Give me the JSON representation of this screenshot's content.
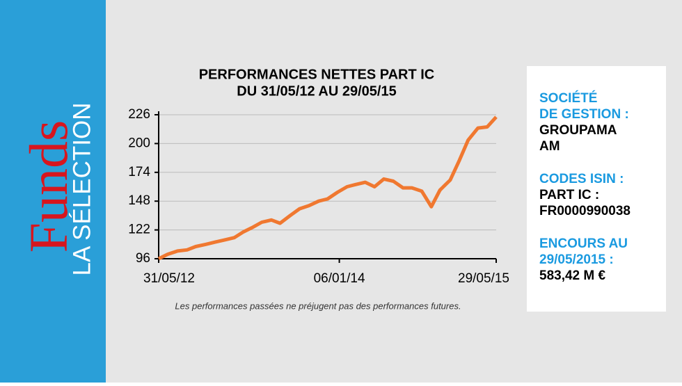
{
  "sidebar": {
    "brand": "Funds",
    "tagline": "LA SÉLECTION"
  },
  "chart_data": {
    "type": "line",
    "title": [
      "PERFORMANCES NETTES PART IC",
      "DU 31/05/12 AU 29/05/15"
    ],
    "note": "Les performances passées ne préjugent pas des performances futures.",
    "x": [
      "31/05/12",
      "29/06/12",
      "31/07/12",
      "31/08/12",
      "28/09/12",
      "31/10/12",
      "30/11/12",
      "31/12/12",
      "31/01/13",
      "28/02/13",
      "29/03/13",
      "30/04/13",
      "31/05/13",
      "28/06/13",
      "31/07/13",
      "30/08/13",
      "30/09/13",
      "31/10/13",
      "29/11/13",
      "31/12/13",
      "31/01/14",
      "28/02/14",
      "31/03/14",
      "30/04/14",
      "30/05/14",
      "30/06/14",
      "31/07/14",
      "29/08/14",
      "30/09/14",
      "31/10/14",
      "28/11/14",
      "31/12/14",
      "30/01/15",
      "27/02/15",
      "31/03/15",
      "30/04/15",
      "29/05/15"
    ],
    "series": [
      {
        "color": "#f07830",
        "values": [
          96,
          100,
          103,
          104,
          107,
          109,
          111,
          113,
          115,
          120,
          124,
          129,
          131,
          128,
          135,
          141,
          144,
          148,
          150,
          156,
          161,
          163,
          165,
          161,
          168,
          166,
          160,
          160,
          157,
          143,
          158,
          167,
          185,
          203,
          214,
          215,
          224
        ]
      }
    ],
    "xlim": [
      "31/05/12",
      "29/05/15"
    ],
    "xticks": [
      "31/05/12",
      "06/01/14",
      "29/05/15"
    ],
    "ylim": [
      96,
      226
    ],
    "yticks": [
      96,
      122,
      148,
      174,
      200,
      226
    ],
    "grid": true
  },
  "info": [
    {
      "label": "SOCIÉTÉ\nDE GESTION :",
      "value": "GROUPAMA\nAM"
    },
    {
      "label": "CODES ISIN :",
      "value": "PART IC :\nFR0000990038"
    },
    {
      "label": "ENCOURS AU\n29/05/2015 :",
      "value": "583,42  M €"
    }
  ]
}
